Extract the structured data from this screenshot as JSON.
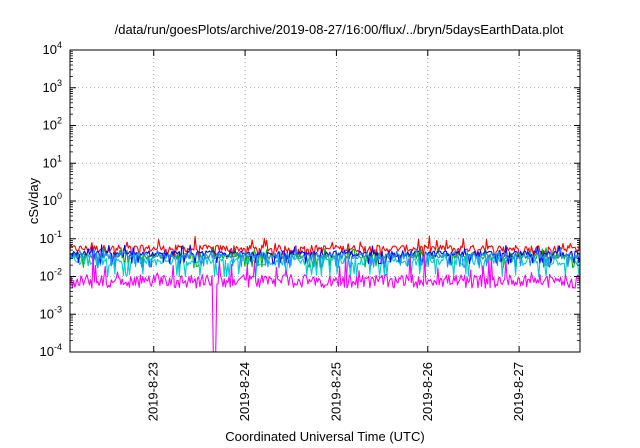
{
  "chart_data": {
    "type": "line",
    "title": "/data/run/goesPlots/archive/2019-08-27/16:00/flux/../bryn/5daysEarthData.plot",
    "xlabel": "Coordinated Universal Time (UTC)",
    "ylabel": "cSv/day",
    "yscale": "log",
    "ylim": [
      0.0001,
      10000
    ],
    "yticks": [
      {
        "value": 0.0001,
        "base": "10",
        "exp": "-4"
      },
      {
        "value": 0.001,
        "base": "10",
        "exp": "-3"
      },
      {
        "value": 0.01,
        "base": "10",
        "exp": "-2"
      },
      {
        "value": 0.1,
        "base": "10",
        "exp": "-1"
      },
      {
        "value": 1,
        "base": "10",
        "exp": "0"
      },
      {
        "value": 10,
        "base": "10",
        "exp": "1"
      },
      {
        "value": 100,
        "base": "10",
        "exp": "2"
      },
      {
        "value": 1000,
        "base": "10",
        "exp": "3"
      },
      {
        "value": 10000,
        "base": "10",
        "exp": "4"
      }
    ],
    "xlim": [
      "2019-08-22 02:00",
      "2019-08-27 16:00"
    ],
    "xticks": [
      "2019-8-23",
      "2019-8-24",
      "2019-8-25",
      "2019-8-26",
      "2019-8-27"
    ],
    "grid": true,
    "legend": "none",
    "series": [
      {
        "color": "#ff0000",
        "typical": 0.055,
        "low": 0.035,
        "high": 0.12
      },
      {
        "color": "#00aa00",
        "typical": 0.035,
        "low": 0.02,
        "high": 0.06
      },
      {
        "color": "#00cccc",
        "typical": 0.025,
        "low": 0.012,
        "high": 0.05
      },
      {
        "color": "#0000ff",
        "typical": 0.04,
        "low": 0.025,
        "high": 0.07
      },
      {
        "color": "#1e90ff",
        "typical": 0.035,
        "low": 0.02,
        "high": 0.06
      },
      {
        "color": "#ff00ff",
        "typical": 0.008,
        "low": 0.0055,
        "high": 0.04,
        "dip": {
          "at": "2019-08-23 16:00",
          "to": 0.0001
        }
      }
    ]
  }
}
